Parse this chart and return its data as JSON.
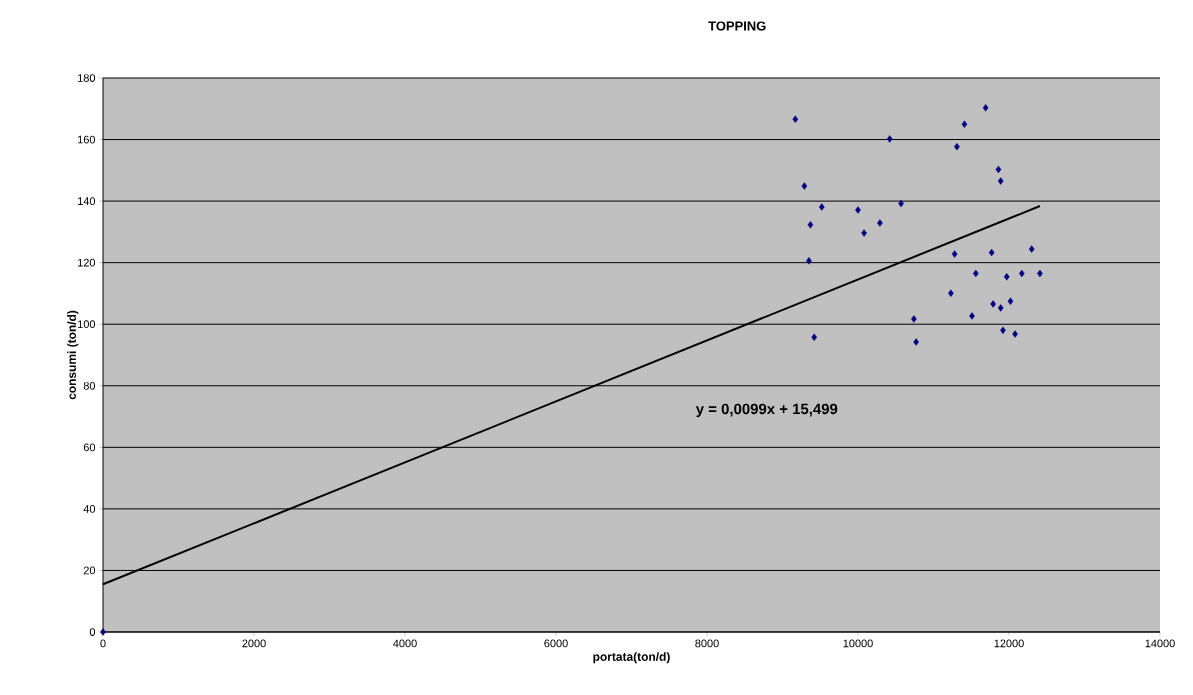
{
  "chart_data": {
    "type": "scatter",
    "title": "TOPPING",
    "xlabel": "portata(ton/d)",
    "ylabel": "consumi (ton/d)",
    "xlim": [
      0,
      14000
    ],
    "xticks": [
      0,
      2000,
      4000,
      6000,
      8000,
      10000,
      12000,
      14000
    ],
    "ylim": [
      0,
      180
    ],
    "yticks": [
      0,
      20,
      40,
      60,
      80,
      100,
      120,
      140,
      160,
      180
    ],
    "grid": "y",
    "marker": "diamond",
    "annotations": [
      "y = 0,0099x + 15,499"
    ],
    "series": [
      {
        "color": "#000080",
        "x": [
          0,
          9170,
          11410,
          11690,
          10420,
          11310,
          11860,
          11890,
          9290,
          9520,
          10000,
          10570,
          9370,
          10290,
          10080,
          9350,
          11280,
          11770,
          12300,
          11560,
          11970,
          12170,
          12410,
          11230,
          11790,
          11890,
          12020,
          11510,
          10740,
          9420,
          10770,
          11920,
          12080
        ],
        "values": [
          0,
          166.6,
          165,
          170.3,
          160.2,
          157.7,
          150.3,
          146.5,
          144.9,
          138.1,
          137.1,
          139.2,
          132.3,
          132.9,
          129.6,
          120.6,
          122.8,
          123.3,
          124.4,
          116.5,
          115.4,
          116.5,
          116.5,
          110.1,
          106.6,
          105.3,
          107.5,
          102.7,
          101.7,
          95.8,
          94.2,
          98,
          96.8
        ]
      },
      {
        "type": "line",
        "color": "#000000",
        "marker": "none",
        "x": [
          0,
          12410
        ],
        "values": [
          15.5,
          138.4
        ]
      }
    ]
  }
}
